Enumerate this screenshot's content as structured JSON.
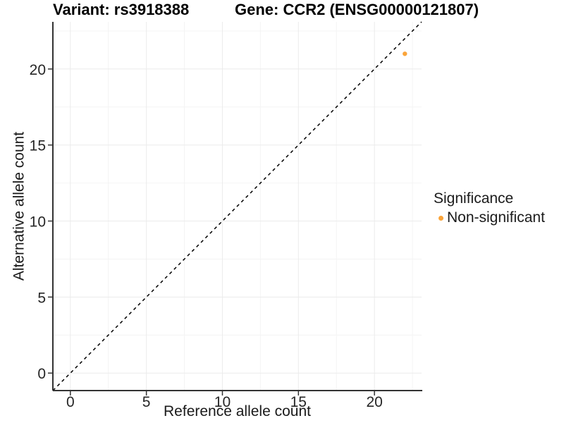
{
  "chart_data": {
    "type": "scatter",
    "title_left": "Variant: rs3918388",
    "title_right": "Gene: CCR2 (ENSG00000121807)",
    "xlabel": "Reference allele count",
    "ylabel": "Alternative allele count",
    "xlim": [
      -1.15,
      23.1
    ],
    "ylim": [
      -1.15,
      23.1
    ],
    "xticks": [
      0,
      5,
      10,
      15,
      20
    ],
    "yticks": [
      0,
      5,
      10,
      15,
      20
    ],
    "minor_gridlines": [
      2.5,
      7.5,
      12.5,
      17.5,
      22.5
    ],
    "grid": "major+minor",
    "series": [
      {
        "name": "Non-significant",
        "color": "#FAA43A",
        "points": [
          {
            "x": 22,
            "y": 21
          }
        ]
      }
    ],
    "reference_line": {
      "slope": 1,
      "intercept": 0,
      "linetype": "dashed",
      "color": "#000000"
    },
    "legend": {
      "title": "Significance",
      "position": "right",
      "entries": [
        {
          "label": "Non-significant",
          "color": "#FAA43A"
        }
      ]
    }
  },
  "colors": {
    "background": "#FFFFFF",
    "axis_line": "#333333",
    "tick_text": "#262626",
    "grid_major": "#EBEBEB",
    "grid_minor": "#F4F4F4",
    "point": "#FAA43A"
  }
}
